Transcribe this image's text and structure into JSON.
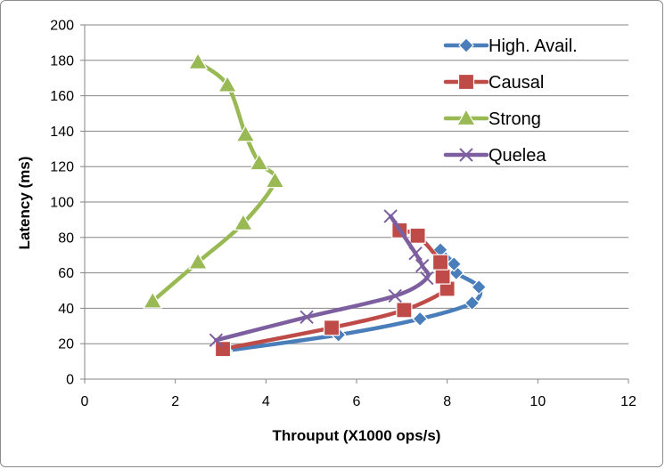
{
  "chart_data": {
    "type": "line",
    "xlabel": "Throuput (X1000 ops/s)",
    "ylabel": "Latency (ms)",
    "xlim": [
      0,
      12
    ],
    "ylim": [
      0,
      200
    ],
    "xticks": [
      0,
      2,
      4,
      6,
      8,
      10,
      12
    ],
    "yticks": [
      0,
      20,
      40,
      60,
      80,
      100,
      120,
      140,
      160,
      180,
      200
    ],
    "grid": "horizontal",
    "legend_position": "top-right",
    "series": [
      {
        "name": "High. Avail.",
        "color": "#4a7ebb",
        "marker": "diamond",
        "points": [
          [
            3.1,
            16
          ],
          [
            5.6,
            25
          ],
          [
            7.4,
            34
          ],
          [
            8.55,
            43
          ],
          [
            8.7,
            52
          ],
          [
            8.2,
            60
          ],
          [
            8.15,
            65
          ],
          [
            7.85,
            73
          ]
        ]
      },
      {
        "name": "Causal",
        "color": "#be4b48",
        "marker": "square",
        "points": [
          [
            3.05,
            17
          ],
          [
            5.45,
            29
          ],
          [
            7.05,
            39
          ],
          [
            8.0,
            51
          ],
          [
            7.9,
            58
          ],
          [
            7.85,
            66
          ],
          [
            7.35,
            81
          ],
          [
            6.95,
            84
          ]
        ]
      },
      {
        "name": "Strong",
        "color": "#98b954",
        "marker": "triangle",
        "points": [
          [
            1.5,
            44
          ],
          [
            2.5,
            66
          ],
          [
            3.5,
            88
          ],
          [
            4.2,
            112
          ],
          [
            3.85,
            122
          ],
          [
            3.55,
            138
          ],
          [
            3.15,
            166
          ],
          [
            2.5,
            179
          ]
        ]
      },
      {
        "name": "Quelea",
        "color": "#7d5fa0",
        "marker": "x",
        "points": [
          [
            2.9,
            22
          ],
          [
            4.9,
            35
          ],
          [
            6.85,
            47
          ],
          [
            7.55,
            57
          ],
          [
            7.45,
            64
          ],
          [
            7.3,
            71
          ],
          [
            6.75,
            92
          ]
        ]
      }
    ]
  }
}
